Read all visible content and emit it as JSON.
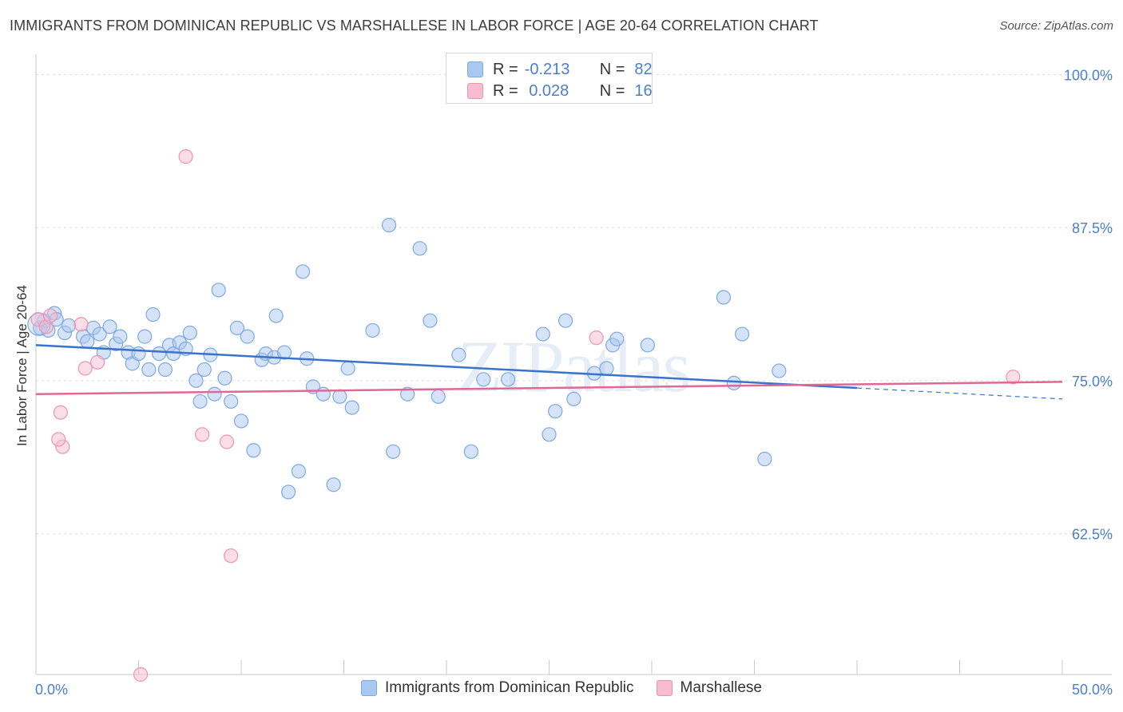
{
  "title": "IMMIGRANTS FROM DOMINICAN REPUBLIC VS MARSHALLESE IN LABOR FORCE | AGE 20-64 CORRELATION CHART",
  "source": "Source: ZipAtlas.com",
  "watermark": "ZIPatlas",
  "legend": {
    "rows": [
      {
        "r_label": "R =",
        "r_value": "-0.213",
        "n_label": "N =",
        "n_value": "82",
        "color": "#a9c8f0",
        "border": "#7ea9e0"
      },
      {
        "r_label": "R =",
        "r_value": " 0.028",
        "n_label": "N =",
        "n_value": "16",
        "color": "#f7bcd0",
        "border": "#e896b2"
      }
    ]
  },
  "bottom_legend": [
    {
      "label": "Immigrants from Dominican Republic",
      "color": "#a9c8f0",
      "border": "#7ea9e0"
    },
    {
      "label": "Marshallese",
      "color": "#f7bcd0",
      "border": "#e896b2"
    }
  ],
  "chart_data": {
    "type": "scatter",
    "xlabel": "",
    "ylabel": "In Labor Force | Age 20-64",
    "xlim": [
      0,
      50
    ],
    "ylim": [
      51,
      101
    ],
    "x_tick_labels": [
      "0.0%",
      "50.0%"
    ],
    "y_ticks": [
      62.5,
      75.0,
      87.5,
      100.0
    ],
    "y_tick_labels": [
      "62.5%",
      "75.0%",
      "87.5%",
      "100.0%"
    ],
    "grid": true,
    "series": [
      {
        "name": "Immigrants from Dominican Republic",
        "color": "#a9c8f0",
        "stroke": "#7ea9e0",
        "trend": {
          "x0": 0.0,
          "y0": 77.9,
          "x1": 40.0,
          "y1": 74.4,
          "dash_to": 50.0,
          "dash_y": 73.5,
          "color": "#3a73cc"
        },
        "points": [
          [
            0.2,
            79.3
          ],
          [
            0.4,
            79.9
          ],
          [
            0.6,
            79.1
          ],
          [
            0.9,
            80.5
          ],
          [
            1.0,
            80.0
          ],
          [
            1.4,
            78.9
          ],
          [
            1.6,
            79.5
          ],
          [
            2.3,
            78.6
          ],
          [
            2.5,
            78.2
          ],
          [
            2.8,
            79.3
          ],
          [
            3.1,
            78.8
          ],
          [
            3.3,
            77.3
          ],
          [
            3.6,
            79.4
          ],
          [
            3.9,
            78.0
          ],
          [
            4.1,
            78.6
          ],
          [
            4.5,
            77.3
          ],
          [
            4.7,
            76.4
          ],
          [
            5.0,
            77.2
          ],
          [
            5.3,
            78.6
          ],
          [
            5.5,
            75.9
          ],
          [
            5.7,
            80.4
          ],
          [
            6.0,
            77.2
          ],
          [
            6.3,
            75.9
          ],
          [
            6.5,
            77.9
          ],
          [
            6.7,
            77.2
          ],
          [
            7.0,
            78.1
          ],
          [
            7.3,
            77.6
          ],
          [
            7.5,
            78.9
          ],
          [
            7.8,
            75.0
          ],
          [
            8.0,
            73.3
          ],
          [
            8.2,
            75.9
          ],
          [
            8.5,
            77.1
          ],
          [
            8.7,
            73.9
          ],
          [
            8.9,
            82.4
          ],
          [
            9.2,
            75.2
          ],
          [
            9.5,
            73.3
          ],
          [
            9.8,
            79.3
          ],
          [
            10.0,
            71.7
          ],
          [
            10.3,
            78.6
          ],
          [
            10.6,
            69.3
          ],
          [
            11.0,
            76.7
          ],
          [
            11.2,
            77.2
          ],
          [
            11.6,
            76.9
          ],
          [
            11.7,
            80.3
          ],
          [
            12.1,
            77.3
          ],
          [
            12.3,
            65.9
          ],
          [
            12.8,
            67.6
          ],
          [
            13.0,
            83.9
          ],
          [
            13.2,
            76.8
          ],
          [
            13.5,
            74.5
          ],
          [
            14.0,
            73.9
          ],
          [
            14.5,
            66.5
          ],
          [
            14.8,
            73.7
          ],
          [
            15.2,
            76.0
          ],
          [
            15.4,
            72.8
          ],
          [
            16.4,
            79.1
          ],
          [
            17.2,
            87.7
          ],
          [
            17.4,
            69.2
          ],
          [
            18.1,
            73.9
          ],
          [
            18.7,
            85.8
          ],
          [
            19.2,
            79.9
          ],
          [
            19.6,
            73.7
          ],
          [
            20.6,
            77.1
          ],
          [
            21.2,
            69.2
          ],
          [
            21.8,
            75.1
          ],
          [
            23.0,
            75.1
          ],
          [
            24.7,
            78.8
          ],
          [
            25.0,
            70.6
          ],
          [
            25.3,
            72.5
          ],
          [
            25.8,
            79.9
          ],
          [
            26.2,
            73.5
          ],
          [
            27.2,
            75.6
          ],
          [
            27.8,
            76.0
          ],
          [
            28.1,
            77.9
          ],
          [
            28.3,
            78.4
          ],
          [
            29.8,
            77.9
          ],
          [
            33.5,
            81.8
          ],
          [
            34.0,
            74.8
          ],
          [
            34.4,
            78.8
          ],
          [
            35.5,
            68.6
          ],
          [
            36.2,
            75.8
          ],
          [
            0.15,
            79.6
          ]
        ]
      },
      {
        "name": "Marshallese",
        "color": "#f7bcd0",
        "stroke": "#e896b2",
        "trend": {
          "x0": 0.0,
          "y0": 73.9,
          "x1": 50.0,
          "y1": 74.9,
          "color": "#e06895"
        },
        "points": [
          [
            0.1,
            80.0
          ],
          [
            0.5,
            79.4
          ],
          [
            0.7,
            80.3
          ],
          [
            1.2,
            72.4
          ],
          [
            1.3,
            69.6
          ],
          [
            1.1,
            70.2
          ],
          [
            2.2,
            79.6
          ],
          [
            2.4,
            76.0
          ],
          [
            3.0,
            76.5
          ],
          [
            5.1,
            51.0
          ],
          [
            7.3,
            93.3
          ],
          [
            8.1,
            70.6
          ],
          [
            9.3,
            70.0
          ],
          [
            9.5,
            60.7
          ],
          [
            27.3,
            78.5
          ],
          [
            47.6,
            75.3
          ]
        ]
      }
    ]
  }
}
